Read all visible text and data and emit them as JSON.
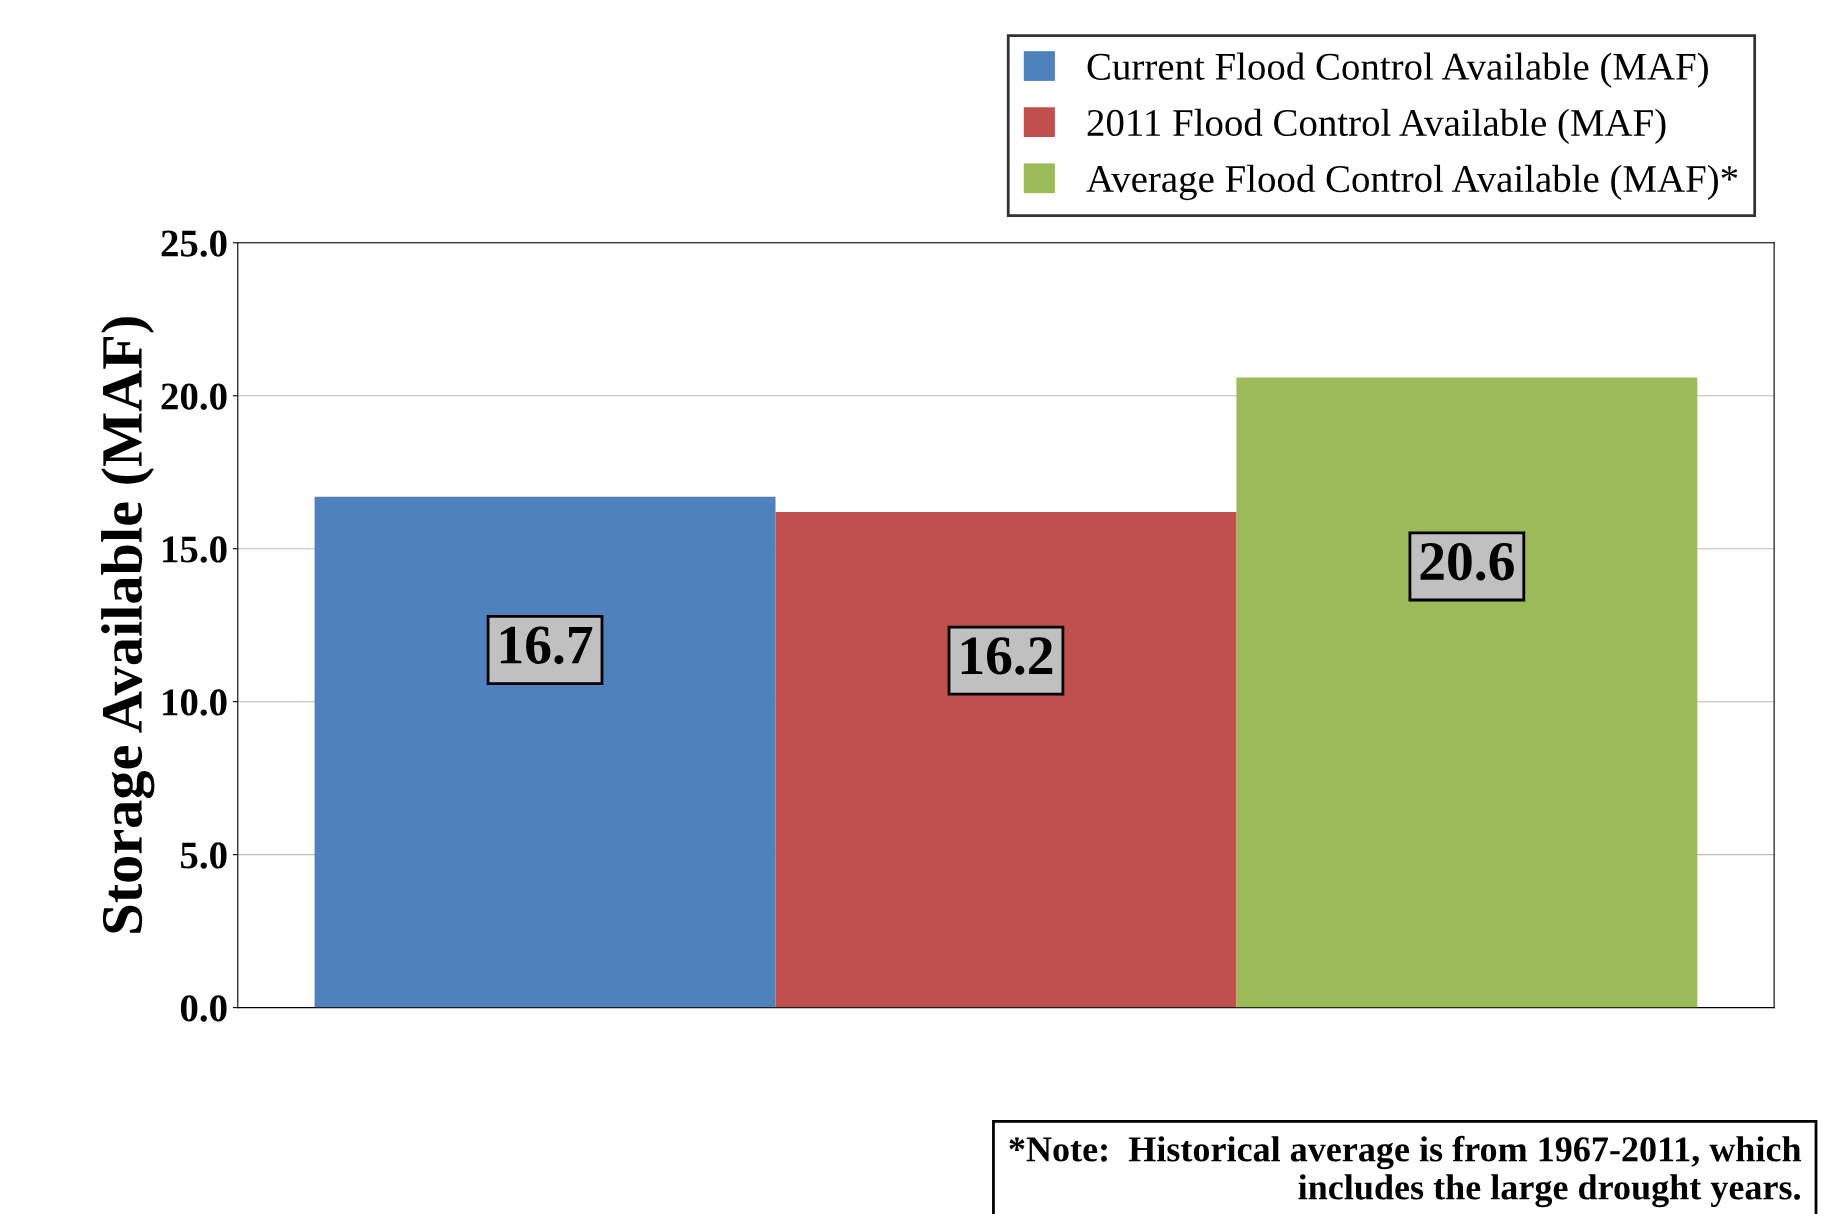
{
  "chart_data": {
    "type": "bar",
    "ylabel": "Storage Available (MAF)",
    "categories": [
      null
    ],
    "series": [
      {
        "name": "Current Flood Control Available (MAF)",
        "color": "#4f81bd",
        "values": [
          16.7
        ]
      },
      {
        "name": "2011 Flood Control Available (MAF)",
        "color": "#c0504d",
        "values": [
          16.2
        ]
      },
      {
        "name": "Average Flood Control Available (MAF)*",
        "color": "#9bbb59",
        "values": [
          20.6
        ]
      }
    ],
    "ylim": [
      0,
      25
    ],
    "yticks": [
      {
        "value": 0,
        "label": "0.0"
      },
      {
        "value": 5,
        "label": "5.0"
      },
      {
        "value": 10,
        "label": "10.0"
      },
      {
        "value": 15,
        "label": "15.0"
      },
      {
        "value": 20,
        "label": "20.0"
      },
      {
        "value": 25,
        "label": "25.0"
      }
    ],
    "grid": "y",
    "legend": "top right",
    "data_labels": true,
    "annotations": [
      "*Note:  Historical average is from 1967-2011, which\n            includes the large drought years."
    ]
  }
}
